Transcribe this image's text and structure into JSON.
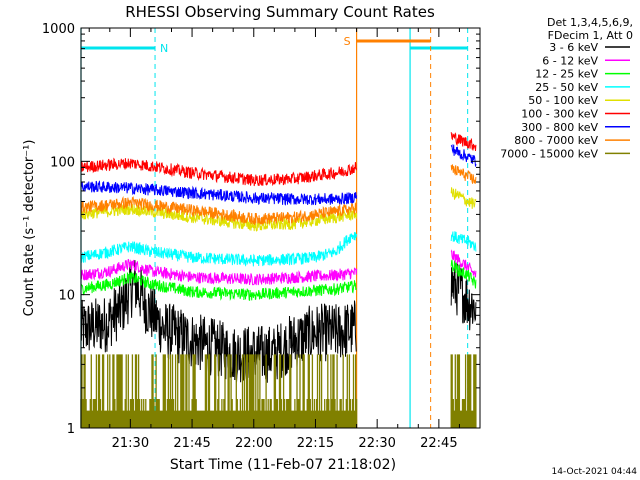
{
  "chart_data": {
    "type": "line",
    "title": "RHESSI Observing Summary Count Rates",
    "ylabel": "Count Rate (s⁻¹ detector⁻¹)",
    "xlabel": "Start Time (11-Feb-07 21:18:02)",
    "xlim": [
      "21:18",
      "22:55"
    ],
    "ylim": [
      1,
      1000
    ],
    "yscale": "log",
    "x_ticks": [
      "21:30",
      "21:45",
      "22:00",
      "22:15",
      "22:30",
      "22:45"
    ],
    "y_ticks": [
      "1",
      "10",
      "100",
      "1000"
    ],
    "legend_position": "right",
    "legend_header": [
      "Det 1,3,4,5,6,9,",
      "FDecim 1, Att 0"
    ],
    "timestamp": "14-Oct-2021 04:44",
    "bar_labels": {
      "night": "N",
      "saa": "S"
    },
    "bars": {
      "night": [
        [
          "21:18",
          "21:36"
        ],
        [
          "22:38",
          "22:52"
        ]
      ],
      "saa": [
        [
          "22:25",
          "22:43"
        ]
      ]
    },
    "segments": [
      {
        "start": "21:18",
        "end": "22:25"
      },
      {
        "start": "22:48",
        "end": "22:54"
      }
    ],
    "series": [
      {
        "name": "3 - 6 keV",
        "color": "#000000",
        "x": [
          "21:18",
          "21:24",
          "21:28",
          "21:31",
          "21:34",
          "21:38",
          "21:45",
          "21:55",
          "22:05",
          "22:10",
          "22:15",
          "22:20",
          "22:24",
          "22:48",
          "22:50",
          "22:52",
          "22:54"
        ],
        "y": [
          5.5,
          6,
          8,
          12,
          8,
          5.5,
          4.5,
          3.6,
          3.6,
          4.5,
          5.2,
          5.2,
          5.5,
          12,
          11,
          9,
          8
        ]
      },
      {
        "name": "6 - 12 keV",
        "color": "#ff00ff",
        "x": [
          "21:18",
          "21:25",
          "21:30",
          "21:35",
          "21:45",
          "22:00",
          "22:10",
          "22:20",
          "22:24",
          "22:48",
          "22:50",
          "22:52",
          "22:54"
        ],
        "y": [
          14,
          15,
          17,
          15,
          13.5,
          13,
          13.5,
          14,
          14.5,
          20,
          18,
          16,
          14
        ]
      },
      {
        "name": "12 - 25 keV",
        "color": "#00ff00",
        "x": [
          "21:18",
          "21:25",
          "21:30",
          "21:35",
          "21:45",
          "22:00",
          "22:10",
          "22:20",
          "22:24",
          "22:48",
          "22:50",
          "22:52",
          "22:54"
        ],
        "y": [
          11,
          12,
          13.5,
          12,
          10.5,
          10,
          10.5,
          11,
          11.5,
          17,
          15,
          14,
          12
        ]
      },
      {
        "name": "25 - 50 keV",
        "color": "#00ffff",
        "x": [
          "21:18",
          "21:25",
          "21:30",
          "21:35",
          "21:45",
          "22:00",
          "22:10",
          "22:15",
          "22:20",
          "22:24",
          "22:48",
          "22:50",
          "22:52",
          "22:54"
        ],
        "y": [
          19,
          21,
          23,
          21,
          19,
          18,
          18.5,
          19,
          21,
          28,
          28,
          26,
          25,
          23
        ]
      },
      {
        "name": "50 - 100 keV",
        "color": "#e0e000",
        "x": [
          "21:18",
          "21:30",
          "21:45",
          "22:00",
          "22:10",
          "22:20",
          "22:24",
          "22:48",
          "22:50",
          "22:52",
          "22:54"
        ],
        "y": [
          40,
          44,
          38,
          33,
          34,
          38,
          40,
          58,
          55,
          50,
          47
        ]
      },
      {
        "name": "100 - 300 keV",
        "color": "#ff0000",
        "x": [
          "21:18",
          "21:30",
          "21:45",
          "22:00",
          "22:10",
          "22:20",
          "22:24",
          "22:48",
          "22:50",
          "22:52",
          "22:54"
        ],
        "y": [
          90,
          97,
          82,
          72,
          74,
          82,
          88,
          155,
          145,
          138,
          130
        ]
      },
      {
        "name": "300 - 800 keV",
        "color": "#0000ff",
        "x": [
          "21:18",
          "21:30",
          "21:45",
          "22:00",
          "22:10",
          "22:20",
          "22:24",
          "22:48",
          "22:50",
          "22:52",
          "22:54"
        ],
        "y": [
          65,
          63,
          58,
          53,
          52,
          52,
          53,
          125,
          115,
          108,
          100
        ]
      },
      {
        "name": "800 - 7000 keV",
        "color": "#ff8000",
        "x": [
          "21:18",
          "21:30",
          "21:45",
          "22:00",
          "22:10",
          "22:20",
          "22:24",
          "22:48",
          "22:50",
          "22:52",
          "22:54"
        ],
        "y": [
          45,
          49,
          43,
          37,
          38,
          42,
          44,
          88,
          83,
          77,
          72
        ]
      },
      {
        "name": "7000 - 15000 keV",
        "color": "#808000",
        "x": [
          "21:18",
          "22:24",
          "22:48",
          "22:54"
        ],
        "y": [
          1,
          1,
          1,
          1
        ]
      }
    ]
  }
}
